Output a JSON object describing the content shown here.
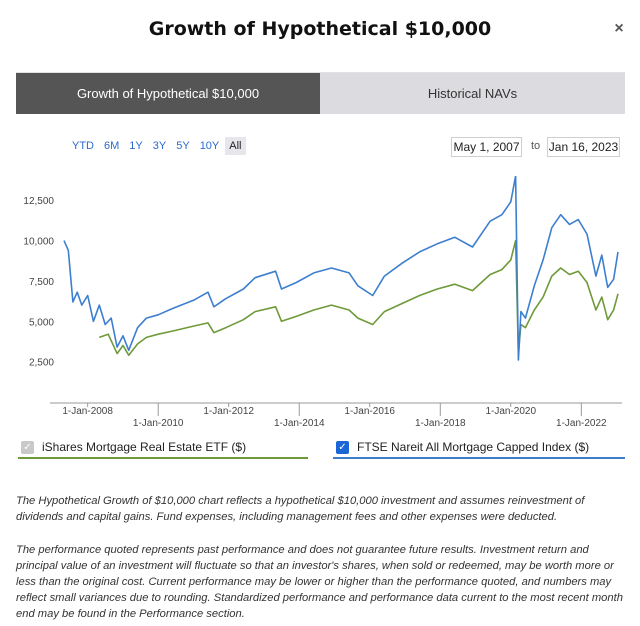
{
  "modal": {
    "title": "Growth of Hypothetical $10,000",
    "close_label": "×"
  },
  "tabs": [
    {
      "label": "Growth of Hypothetical $10,000",
      "active": true
    },
    {
      "label": "Historical NAVs",
      "active": false
    }
  ],
  "ranges": [
    "YTD",
    "6M",
    "1Y",
    "3Y",
    "5Y",
    "10Y",
    "All"
  ],
  "selected_range": "All",
  "date_range": {
    "from": "May 1, 2007",
    "separator": "to",
    "to": "Jan 16, 2023"
  },
  "legend": [
    {
      "label": "iShares Mortgage Real Estate ETF ($)",
      "checked": true,
      "color": "#6e9a3a"
    },
    {
      "label": "FTSE Nareit All Mortgage Capped Index ($)",
      "checked": true,
      "color": "#3d7fcf"
    }
  ],
  "notes": [
    "The Hypothetical Growth of $10,000 chart reflects a hypothetical $10,000 investment and assumes reinvestment of dividends and capital gains. Fund expenses, including management fees and other expenses were deducted.",
    "The performance quoted represents past performance and does not guarantee future results. Investment return and principal value of an investment will fluctuate so that an investor's shares, when sold or redeemed, may be worth more or less than the original cost. Current performance may be lower or higher than the performance quoted, and numbers may reflect small variances due to rounding. Standardized performance and performance data current to the most recent month end may be found in the Performance section."
  ],
  "chart_data": {
    "type": "line",
    "x_type": "date",
    "ylim": [
      0,
      14000
    ],
    "yticks": [
      2500,
      5000,
      7500,
      10000,
      12500
    ],
    "ytick_labels": [
      "2,500",
      "5,000",
      "7,500",
      "10,000",
      "12,500"
    ],
    "xticks": [
      "2008-01-01",
      "2010-01-01",
      "2012-01-01",
      "2014-01-01",
      "2016-01-01",
      "2018-01-01",
      "2020-01-01",
      "2022-01-01"
    ],
    "xtick_labels": [
      "1-Jan-2008",
      "1-Jan-2010",
      "1-Jan-2012",
      "1-Jan-2014",
      "1-Jan-2016",
      "1-Jan-2018",
      "1-Jan-2020",
      "1-Jan-2022"
    ],
    "xlim": [
      "2007-05-01",
      "2023-01-16"
    ],
    "grid": false,
    "series": [
      {
        "name": "FTSE Nareit All Mortgage Capped Index ($)",
        "color": "#3d7fcf",
        "points": [
          [
            "2007-05-01",
            10000
          ],
          [
            "2007-06-15",
            9400
          ],
          [
            "2007-08-01",
            6200
          ],
          [
            "2007-09-15",
            6800
          ],
          [
            "2007-11-01",
            6000
          ],
          [
            "2008-01-01",
            6600
          ],
          [
            "2008-03-01",
            5000
          ],
          [
            "2008-05-01",
            6000
          ],
          [
            "2008-07-01",
            4800
          ],
          [
            "2008-09-01",
            5200
          ],
          [
            "2008-11-01",
            3400
          ],
          [
            "2009-01-01",
            4100
          ],
          [
            "2009-03-01",
            3200
          ],
          [
            "2009-06-01",
            4600
          ],
          [
            "2009-09-01",
            5200
          ],
          [
            "2010-01-01",
            5400
          ],
          [
            "2010-06-01",
            5800
          ],
          [
            "2011-01-01",
            6300
          ],
          [
            "2011-06-01",
            6800
          ],
          [
            "2011-08-01",
            5900
          ],
          [
            "2011-12-01",
            6400
          ],
          [
            "2012-06-01",
            7000
          ],
          [
            "2012-10-01",
            7700
          ],
          [
            "2013-05-01",
            8100
          ],
          [
            "2013-07-01",
            7000
          ],
          [
            "2013-12-01",
            7400
          ],
          [
            "2014-06-01",
            8000
          ],
          [
            "2014-12-01",
            8300
          ],
          [
            "2015-06-01",
            8000
          ],
          [
            "2015-09-01",
            7200
          ],
          [
            "2016-02-01",
            6600
          ],
          [
            "2016-06-01",
            7800
          ],
          [
            "2016-12-01",
            8600
          ],
          [
            "2017-06-01",
            9300
          ],
          [
            "2017-12-01",
            9800
          ],
          [
            "2018-06-01",
            10200
          ],
          [
            "2018-12-01",
            9600
          ],
          [
            "2019-06-01",
            11200
          ],
          [
            "2019-10-01",
            11600
          ],
          [
            "2020-01-01",
            12400
          ],
          [
            "2020-02-20",
            14000
          ],
          [
            "2020-03-20",
            2600
          ],
          [
            "2020-04-15",
            5600
          ],
          [
            "2020-06-01",
            5200
          ],
          [
            "2020-09-01",
            7200
          ],
          [
            "2020-12-01",
            8800
          ],
          [
            "2021-03-01",
            10800
          ],
          [
            "2021-06-01",
            11600
          ],
          [
            "2021-09-01",
            11000
          ],
          [
            "2021-12-01",
            11300
          ],
          [
            "2022-03-01",
            10400
          ],
          [
            "2022-06-01",
            7800
          ],
          [
            "2022-08-01",
            9100
          ],
          [
            "2022-10-01",
            7100
          ],
          [
            "2022-12-01",
            7600
          ],
          [
            "2023-01-16",
            9300
          ]
        ]
      },
      {
        "name": "iShares Mortgage Real Estate ETF ($)",
        "color": "#6e9a3a",
        "points": [
          [
            "2008-05-01",
            4000
          ],
          [
            "2008-08-01",
            4200
          ],
          [
            "2008-11-01",
            3000
          ],
          [
            "2009-01-01",
            3500
          ],
          [
            "2009-03-01",
            2900
          ],
          [
            "2009-06-01",
            3600
          ],
          [
            "2009-09-01",
            4000
          ],
          [
            "2010-01-01",
            4200
          ],
          [
            "2010-06-01",
            4400
          ],
          [
            "2011-01-01",
            4700
          ],
          [
            "2011-06-01",
            4900
          ],
          [
            "2011-08-01",
            4300
          ],
          [
            "2011-12-01",
            4600
          ],
          [
            "2012-06-01",
            5100
          ],
          [
            "2012-10-01",
            5600
          ],
          [
            "2013-05-01",
            5900
          ],
          [
            "2013-07-01",
            5000
          ],
          [
            "2013-12-01",
            5300
          ],
          [
            "2014-06-01",
            5700
          ],
          [
            "2014-12-01",
            6000
          ],
          [
            "2015-06-01",
            5700
          ],
          [
            "2015-09-01",
            5200
          ],
          [
            "2016-02-01",
            4800
          ],
          [
            "2016-06-01",
            5600
          ],
          [
            "2016-12-01",
            6100
          ],
          [
            "2017-06-01",
            6600
          ],
          [
            "2017-12-01",
            7000
          ],
          [
            "2018-06-01",
            7300
          ],
          [
            "2018-12-01",
            6900
          ],
          [
            "2019-06-01",
            7900
          ],
          [
            "2019-10-01",
            8200
          ],
          [
            "2020-01-01",
            8800
          ],
          [
            "2020-02-20",
            10000
          ],
          [
            "2020-03-20",
            3000
          ],
          [
            "2020-04-15",
            4800
          ],
          [
            "2020-06-01",
            4600
          ],
          [
            "2020-09-01",
            5700
          ],
          [
            "2020-12-01",
            6500
          ],
          [
            "2021-03-01",
            7800
          ],
          [
            "2021-06-01",
            8300
          ],
          [
            "2021-09-01",
            7900
          ],
          [
            "2021-12-01",
            8100
          ],
          [
            "2022-03-01",
            7400
          ],
          [
            "2022-06-01",
            5700
          ],
          [
            "2022-08-01",
            6500
          ],
          [
            "2022-10-01",
            5100
          ],
          [
            "2022-12-01",
            5700
          ],
          [
            "2023-01-16",
            6700
          ]
        ]
      }
    ]
  }
}
